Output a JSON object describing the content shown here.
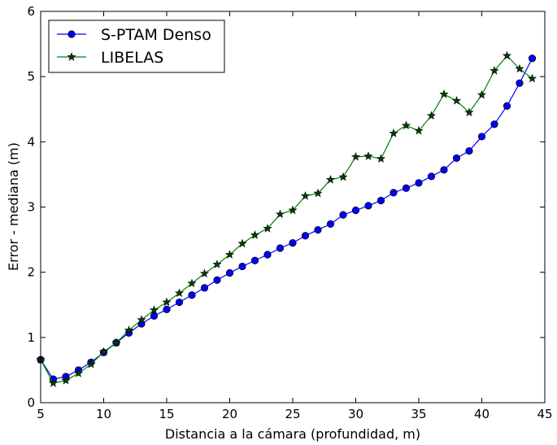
{
  "chart_data": {
    "type": "line",
    "xlabel": "Distancia a la cámara (profundidad, m)",
    "ylabel": "Error - mediana (m)",
    "xlim": [
      5,
      45
    ],
    "ylim": [
      0,
      6
    ],
    "xticks": [
      5,
      10,
      15,
      20,
      25,
      30,
      35,
      40,
      45
    ],
    "yticks": [
      0,
      1,
      2,
      3,
      4,
      5,
      6
    ],
    "grid": false,
    "legend_position": "top-left",
    "x": [
      5,
      6,
      7,
      8,
      9,
      10,
      11,
      12,
      13,
      14,
      15,
      16,
      17,
      18,
      19,
      20,
      21,
      22,
      23,
      24,
      25,
      26,
      27,
      28,
      29,
      30,
      31,
      32,
      33,
      34,
      35,
      36,
      37,
      38,
      39,
      40,
      41,
      42,
      43,
      44
    ],
    "series": [
      {
        "name": "S-PTAM Denso",
        "color": "#0000ff",
        "marker": "circle",
        "values": [
          0.66,
          0.36,
          0.4,
          0.5,
          0.62,
          0.77,
          0.92,
          1.07,
          1.21,
          1.33,
          1.43,
          1.54,
          1.65,
          1.76,
          1.88,
          1.99,
          2.09,
          2.18,
          2.27,
          2.37,
          2.45,
          2.56,
          2.65,
          2.74,
          2.88,
          2.95,
          3.02,
          3.1,
          3.22,
          3.29,
          3.37,
          3.47,
          3.57,
          3.75,
          3.86,
          4.08,
          4.27,
          4.55,
          4.9,
          5.28
        ]
      },
      {
        "name": "LIBELAS",
        "color": "#007f00",
        "marker": "star",
        "values": [
          0.66,
          0.3,
          0.34,
          0.45,
          0.59,
          0.78,
          0.92,
          1.11,
          1.27,
          1.42,
          1.54,
          1.68,
          1.83,
          1.98,
          2.12,
          2.27,
          2.44,
          2.57,
          2.67,
          2.89,
          2.95,
          3.17,
          3.21,
          3.42,
          3.46,
          3.77,
          3.78,
          3.74,
          4.13,
          4.25,
          4.17,
          4.4,
          4.73,
          4.63,
          4.45,
          4.72,
          5.09,
          5.32,
          5.12,
          4.97
        ]
      }
    ]
  }
}
